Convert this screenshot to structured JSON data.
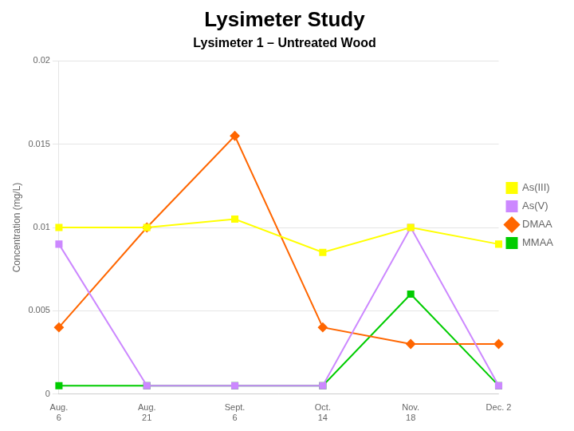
{
  "chart_data": {
    "type": "line",
    "title": "Lysimeter Study",
    "subtitle": "Lysimeter 1 – Untreated Wood",
    "ylabel": "Concentration (mg/L)",
    "categories": [
      "Aug.\n6",
      "Aug.\n21",
      "Sept.\n6",
      "Oct.\n14",
      "Nov.\n18",
      "Dec. 2"
    ],
    "series": [
      {
        "name": "As(III)",
        "color": "#FFFF00",
        "marker": "square",
        "values": [
          0.01,
          0.01,
          0.0105,
          0.0085,
          0.01,
          0.009
        ]
      },
      {
        "name": "As(V)",
        "color": "#CC88FF",
        "marker": "square",
        "values": [
          0.009,
          0.0005,
          0.0005,
          0.0005,
          0.01,
          0.0005
        ]
      },
      {
        "name": "DMAA",
        "color": "#FF6600",
        "marker": "diamond",
        "values": [
          0.004,
          0.01,
          0.0155,
          0.004,
          0.003,
          0.003
        ]
      },
      {
        "name": "MMAA",
        "color": "#00CC00",
        "marker": "square",
        "values": [
          0.0005,
          0.0005,
          0.0005,
          0.0005,
          0.006,
          0.0005
        ]
      }
    ],
    "ylim": [
      0,
      0.02
    ],
    "yticks": [
      0,
      0.005,
      0.01,
      0.015,
      0.02
    ],
    "grid": true,
    "legend": "right"
  }
}
